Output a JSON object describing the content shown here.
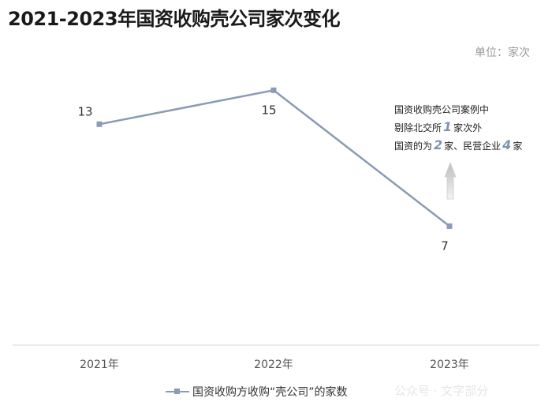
{
  "title": "2021-2023年国资收购壳公司家次变化",
  "unit_label": "单位：家次",
  "annotation": {
    "line1": "国资收购壳公司案例中",
    "line2_pre": "剔除北交所",
    "line2_num": "1",
    "line2_post": "家次外",
    "line3_pre": "国资的为",
    "line3_num1": "2",
    "line3_mid": "家、民营企业",
    "line3_num2": "4",
    "line3_post": "家"
  },
  "watermark": "公众号 · 文字部分",
  "colors": {
    "series": "#8a9bb5",
    "arrow": "#c8c8c8",
    "axis": "#d9d9d9"
  },
  "chart_data": {
    "type": "line",
    "title": "2021-2023年国资收购壳公司家次变化",
    "categories": [
      "2021年",
      "2022年",
      "2023年"
    ],
    "series": [
      {
        "name": "国资收购方收购“壳公司”的家数",
        "values": [
          13,
          15,
          7
        ]
      }
    ],
    "data_labels": [
      "13",
      "15",
      "7"
    ],
    "ylim": [
      0,
      16.5
    ],
    "grid": false,
    "legend_position": "bottom"
  }
}
